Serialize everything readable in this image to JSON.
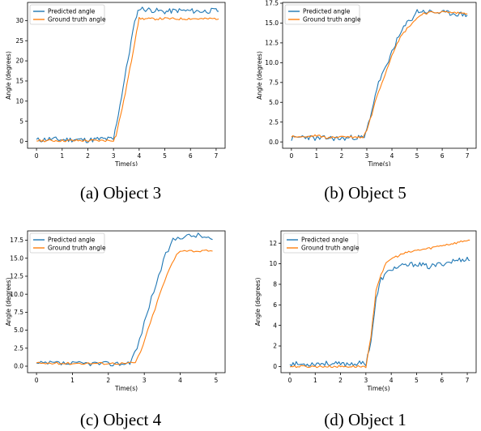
{
  "legend_labels": [
    "Predicted angle",
    "Ground truth angle"
  ],
  "colors": {
    "predicted": "#1f77b4",
    "ground_truth": "#ff7f0e"
  },
  "chart_data": [
    {
      "type": "line",
      "caption": "(a) Object 3",
      "xlabel": "Time(s)",
      "ylabel": "Angle (degrees)",
      "xlim": [
        -0.35,
        7.35
      ],
      "ylim": [
        -1.7,
        34.5
      ],
      "xticks": [
        0,
        1,
        2,
        3,
        4,
        5,
        6,
        7
      ],
      "yticks": [
        0,
        5,
        10,
        15,
        20,
        25,
        30
      ],
      "ytick_labels": [
        "0",
        "5",
        "10",
        "15",
        "20",
        "25",
        "30"
      ],
      "legend": "top-left",
      "series": [
        {
          "name": "Predicted angle",
          "x": [
            0,
            0.5,
            1,
            1.5,
            2,
            2.5,
            2.9,
            3.0,
            3.25,
            3.5,
            3.75,
            3.9,
            4.0,
            4.5,
            5,
            5.5,
            6,
            6.5,
            7,
            7.1
          ],
          "y": [
            0.3,
            0.6,
            0.4,
            0.5,
            0.3,
            0.6,
            0.6,
            0.5,
            9.0,
            18.0,
            27.0,
            31.5,
            33.0,
            32.6,
            32.2,
            32.5,
            32.4,
            32.3,
            32.5,
            32.3
          ]
        },
        {
          "name": "Ground truth angle",
          "x": [
            0,
            0.5,
            1,
            1.5,
            2,
            2.5,
            3.0,
            3.1,
            3.4,
            3.7,
            3.9,
            4.0,
            4.5,
            5,
            5.5,
            6,
            6.5,
            7,
            7.1
          ],
          "y": [
            0.2,
            0.2,
            0.2,
            0.2,
            0.2,
            0.2,
            0.3,
            1.5,
            10.0,
            20.0,
            27.5,
            30.5,
            30.4,
            30.5,
            30.4,
            30.5,
            30.4,
            30.5,
            30.4
          ]
        }
      ]
    },
    {
      "type": "line",
      "caption": "(b) Object 5",
      "xlabel": "Time(s)",
      "ylabel": "Angle (degrees)",
      "xlim": [
        -0.35,
        7.35
      ],
      "ylim": [
        -0.8,
        17.6
      ],
      "xticks": [
        0,
        1,
        2,
        3,
        4,
        5,
        6,
        7
      ],
      "yticks": [
        0,
        2.5,
        5,
        7.5,
        10,
        12.5,
        15,
        17.5
      ],
      "ytick_labels": [
        "0.0",
        "2.5",
        "5.0",
        "7.5",
        "10.0",
        "12.5",
        "15.0",
        "17.5"
      ],
      "legend": "top-left",
      "series": [
        {
          "name": "Predicted angle",
          "x": [
            0,
            0.5,
            1,
            1.5,
            2,
            2.5,
            2.9,
            3.0,
            3.2,
            3.4,
            3.6,
            3.8,
            4.0,
            4.2,
            4.4,
            4.6,
            4.8,
            5.0,
            5.5,
            6,
            6.5,
            7
          ],
          "y": [
            0.4,
            0.7,
            0.4,
            0.5,
            0.4,
            0.6,
            0.5,
            1.5,
            4.0,
            6.8,
            8.5,
            9.5,
            11.5,
            12.8,
            14.0,
            15.0,
            15.6,
            16.5,
            16.4,
            16.3,
            16.2,
            16.0
          ]
        },
        {
          "name": "Ground truth angle",
          "x": [
            0,
            0.5,
            1,
            1.5,
            2,
            2.5,
            2.85,
            3.0,
            3.2,
            3.4,
            3.6,
            3.8,
            4.0,
            4.2,
            4.4,
            4.6,
            4.8,
            5.0,
            5.2,
            5.5,
            6,
            6.5,
            7
          ],
          "y": [
            0.7,
            0.6,
            0.8,
            0.5,
            0.7,
            0.6,
            0.6,
            1.5,
            3.5,
            5.8,
            7.5,
            9.2,
            11.0,
            12.5,
            13.5,
            14.3,
            15.0,
            15.6,
            16.2,
            16.3,
            16.4,
            16.3,
            16.2
          ]
        }
      ]
    },
    {
      "type": "line",
      "caption": "(c) Object 4",
      "xlabel": "Time(s)",
      "ylabel": "Angle (degrees)",
      "xlim": [
        -0.25,
        5.25
      ],
      "ylim": [
        -0.9,
        18.8
      ],
      "xticks": [
        0,
        1,
        2,
        3,
        4,
        5
      ],
      "yticks": [
        0,
        2.5,
        5,
        7.5,
        10,
        12.5,
        15,
        17.5
      ],
      "ytick_labels": [
        "0.0",
        "2.5",
        "5.0",
        "7.5",
        "10.0",
        "12.5",
        "15.0",
        "17.5"
      ],
      "legend": "top-left",
      "series": [
        {
          "name": "Predicted angle",
          "x": [
            0,
            0.5,
            1,
            1.5,
            2,
            2.5,
            2.6,
            2.8,
            3.0,
            3.2,
            3.4,
            3.6,
            3.8,
            4.0,
            4.5,
            4.9
          ],
          "y": [
            0.3,
            0.4,
            0.3,
            0.4,
            0.3,
            0.4,
            0.6,
            2.5,
            6.0,
            9.5,
            12.5,
            15.5,
            17.5,
            18.0,
            18.2,
            17.6
          ]
        },
        {
          "name": "Ground truth angle",
          "x": [
            0,
            0.5,
            1,
            1.5,
            2,
            2.5,
            2.75,
            2.9,
            3.1,
            3.3,
            3.5,
            3.7,
            3.9,
            4.0,
            4.5,
            4.9
          ],
          "y": [
            0.4,
            0.4,
            0.4,
            0.4,
            0.4,
            0.4,
            0.5,
            2.0,
            5.0,
            8.0,
            11.0,
            13.5,
            15.5,
            16.1,
            16.0,
            16.0
          ]
        }
      ]
    },
    {
      "type": "line",
      "caption": "(d) Object 1",
      "xlabel": "Time(s)",
      "ylabel": "Angle (degrees)",
      "xlim": [
        -0.35,
        7.35
      ],
      "ylim": [
        -0.6,
        13.2
      ],
      "xticks": [
        0,
        1,
        2,
        3,
        4,
        5,
        6,
        7
      ],
      "yticks": [
        0,
        2,
        4,
        6,
        8,
        10,
        12
      ],
      "ytick_labels": [
        "0",
        "2",
        "4",
        "6",
        "8",
        "10",
        "12"
      ],
      "legend": "top-left",
      "series": [
        {
          "name": "Predicted angle",
          "x": [
            0,
            0.5,
            1,
            1.5,
            2,
            2.5,
            3.0,
            3.2,
            3.4,
            3.6,
            3.8,
            4.0,
            4.5,
            5,
            5.5,
            6,
            6.5,
            7,
            7.1
          ],
          "y": [
            0.3,
            0.2,
            0.3,
            0.3,
            0.2,
            0.3,
            0.3,
            2.5,
            6.5,
            8.5,
            9.0,
            9.5,
            9.8,
            10.0,
            9.7,
            10.0,
            10.3,
            10.5,
            10.3
          ]
        },
        {
          "name": "Ground truth angle",
          "x": [
            0,
            0.5,
            1,
            1.5,
            2,
            2.5,
            3.0,
            3.2,
            3.4,
            3.6,
            3.8,
            4.0,
            4.5,
            5,
            5.5,
            6,
            6.5,
            7,
            7.1
          ],
          "y": [
            0.0,
            0.0,
            0.0,
            0.0,
            0.0,
            0.0,
            0.0,
            2.8,
            7.5,
            9.0,
            10.0,
            10.5,
            11.0,
            11.3,
            11.5,
            11.8,
            12.0,
            12.3,
            12.3
          ]
        }
      ]
    }
  ]
}
